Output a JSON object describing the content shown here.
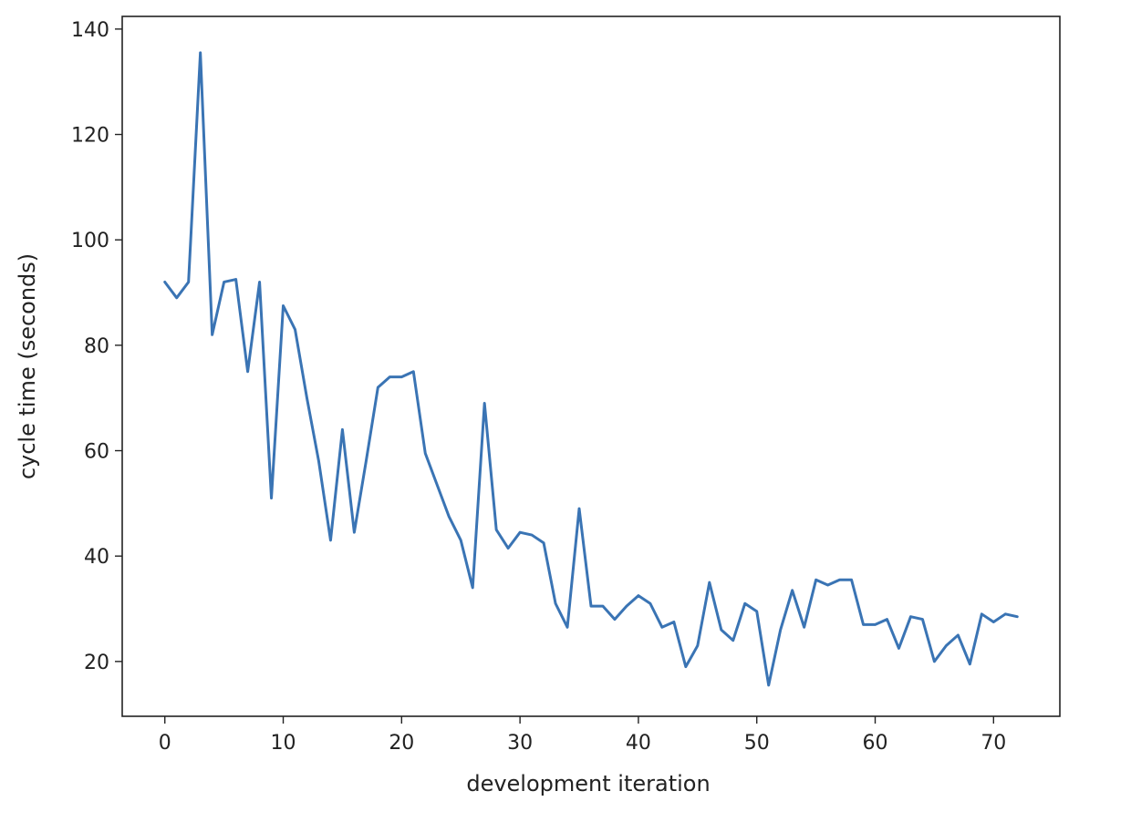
{
  "chart_data": {
    "type": "line",
    "title": "",
    "xlabel": "development iteration",
    "ylabel": "cycle time (seconds)",
    "xlim": [
      -3.6,
      75.6
    ],
    "ylim": [
      9.6,
      142.4
    ],
    "xticks": [
      0,
      10,
      20,
      30,
      40,
      50,
      60,
      70
    ],
    "yticks": [
      20,
      40,
      60,
      80,
      100,
      120,
      140
    ],
    "grid": false,
    "legend": "none",
    "series": [
      {
        "color": "#3a74b4",
        "x": [
          0,
          1,
          2,
          3,
          4,
          5,
          6,
          7,
          8,
          9,
          10,
          11,
          12,
          13,
          14,
          15,
          16,
          17,
          18,
          19,
          20,
          21,
          22,
          23,
          24,
          25,
          26,
          27,
          28,
          29,
          30,
          31,
          32,
          33,
          34,
          35,
          36,
          37,
          38,
          39,
          40,
          41,
          42,
          43,
          44,
          45,
          46,
          47,
          48,
          49,
          50,
          51,
          52,
          53,
          54,
          55,
          56,
          57,
          58,
          59,
          60,
          61,
          62,
          63,
          64,
          65,
          66,
          67,
          68,
          69,
          70,
          71,
          72
        ],
        "y": [
          92,
          89,
          92,
          135.5,
          82,
          92,
          92.5,
          75,
          92,
          51,
          87.5,
          83,
          70,
          58,
          43,
          64,
          44.5,
          58,
          72,
          74,
          74,
          75,
          59.5,
          53.5,
          47.5,
          43,
          34,
          69,
          45,
          41.5,
          44.5,
          44,
          42.5,
          31,
          26.5,
          49,
          30.5,
          30.5,
          28,
          30.5,
          32.5,
          31,
          26.5,
          27.5,
          19,
          23,
          35,
          26,
          24,
          31,
          29.5,
          15.5,
          26,
          33.5,
          26.5,
          35.5,
          34.5,
          35.5,
          35.5,
          27,
          27,
          28,
          22.5,
          28.5,
          28,
          20,
          23,
          25,
          19.5,
          29,
          27.5,
          29,
          28.5
        ]
      }
    ]
  }
}
